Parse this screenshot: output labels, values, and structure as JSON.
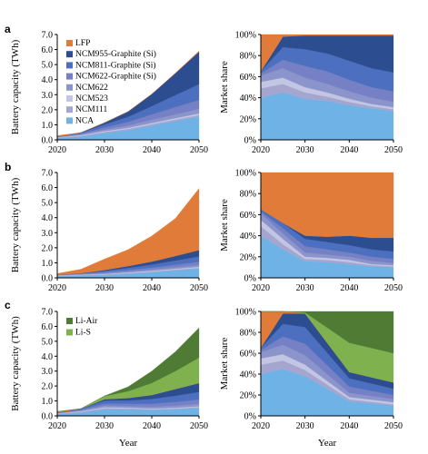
{
  "chart_data": [
    {
      "panel": "a",
      "type": "area",
      "ylabel": "Battery capacity (TWh)",
      "xlabel": "",
      "ylim": [
        0,
        7
      ],
      "xlim": [
        2020,
        2050
      ],
      "x_ticks": [
        "2020",
        "2030",
        "2040",
        "2050"
      ],
      "y_ticks": [
        "0.0",
        "1.0",
        "2.0",
        "3.0",
        "4.0",
        "5.0",
        "6.0",
        "7.0"
      ],
      "grid": false,
      "legend_placement": "top-left",
      "x": [
        2020,
        2025,
        2030,
        2035,
        2040,
        2045,
        2050
      ],
      "series": [
        {
          "name": "NCA",
          "color": "#6fb2e6",
          "values": [
            0.12,
            0.22,
            0.45,
            0.65,
            0.95,
            1.25,
            1.55
          ]
        },
        {
          "name": "NCM111",
          "color": "#a4a6cf",
          "values": [
            0.03,
            0.05,
            0.07,
            0.08,
            0.09,
            0.1,
            0.1
          ]
        },
        {
          "name": "NCM523",
          "color": "#c3c6e2",
          "values": [
            0.02,
            0.04,
            0.06,
            0.07,
            0.08,
            0.09,
            0.1
          ]
        },
        {
          "name": "NCM622",
          "color": "#8b95cc",
          "values": [
            0.02,
            0.05,
            0.1,
            0.15,
            0.21,
            0.25,
            0.3
          ]
        },
        {
          "name": "NCM622-Graphite (Si)",
          "color": "#7581c4",
          "values": [
            0.0,
            0.05,
            0.14,
            0.24,
            0.36,
            0.48,
            0.6
          ]
        },
        {
          "name": "NCM811-Graphite (Si)",
          "color": "#4d6fbf",
          "values": [
            0.0,
            0.07,
            0.2,
            0.34,
            0.55,
            0.8,
            1.05
          ]
        },
        {
          "name": "NCM955-Graphite (Si)",
          "color": "#2c4d8f",
          "values": [
            0.0,
            0.0,
            0.12,
            0.35,
            0.8,
            1.45,
            2.15
          ]
        },
        {
          "name": "LFP",
          "color": "#e07b39",
          "values": [
            0.1,
            0.0,
            0.0,
            0.0,
            0.0,
            0.02,
            0.05
          ]
        }
      ]
    },
    {
      "panel": "a",
      "type": "area",
      "ylabel": "Market share",
      "xlabel": "",
      "ylim": [
        0,
        100
      ],
      "xlim": [
        2020,
        2050
      ],
      "x_ticks": [
        "2020",
        "2030",
        "2040",
        "2050"
      ],
      "y_ticks": [
        "0%",
        "20%",
        "40%",
        "60%",
        "80%",
        "100%"
      ],
      "grid": false,
      "x": [
        2020,
        2025,
        2030,
        2035,
        2040,
        2045,
        2050
      ],
      "series": [
        {
          "name": "NCA",
          "color": "#6fb2e6",
          "values": [
            40,
            45,
            39,
            37,
            33,
            30,
            27
          ]
        },
        {
          "name": "NCM111",
          "color": "#a4a6cf",
          "values": [
            9,
            8,
            6,
            4,
            3,
            2,
            2
          ]
        },
        {
          "name": "NCM523",
          "color": "#c3c6e2",
          "values": [
            6,
            6,
            5,
            4,
            3,
            2,
            2
          ]
        },
        {
          "name": "NCM622",
          "color": "#8b95cc",
          "values": [
            6,
            9,
            9,
            8,
            7,
            6,
            5
          ]
        },
        {
          "name": "NCM622-Graphite (Si)",
          "color": "#7581c4",
          "values": [
            2,
            8,
            11,
            12,
            11,
            10,
            10
          ]
        },
        {
          "name": "NCM811-Graphite (Si)",
          "color": "#4d6fbf",
          "values": [
            2,
            12,
            16,
            17,
            18,
            18,
            18
          ]
        },
        {
          "name": "NCM955-Graphite (Si)",
          "color": "#2c4d8f",
          "values": [
            0,
            10,
            13,
            17,
            24,
            31,
            35
          ]
        },
        {
          "name": "LFP",
          "color": "#e07b39",
          "values": [
            35,
            2,
            1,
            1,
            1,
            1,
            1
          ]
        }
      ]
    },
    {
      "panel": "b",
      "type": "area",
      "ylabel": "Battery capacity (TWh)",
      "xlabel": "",
      "ylim": [
        0,
        7
      ],
      "xlim": [
        2020,
        2050
      ],
      "x_ticks": [
        "2020",
        "2030",
        "2040",
        "2050"
      ],
      "y_ticks": [
        "0.0",
        "1.0",
        "2.0",
        "3.0",
        "4.0",
        "5.0",
        "6.0",
        "7.0"
      ],
      "grid": false,
      "x": [
        2020,
        2025,
        2030,
        2035,
        2040,
        2045,
        2050
      ],
      "series": [
        {
          "name": "NCA",
          "color": "#6fb2e6",
          "values": [
            0.12,
            0.15,
            0.2,
            0.28,
            0.38,
            0.5,
            0.62
          ]
        },
        {
          "name": "NCM111",
          "color": "#a4a6cf",
          "values": [
            0.03,
            0.03,
            0.03,
            0.04,
            0.04,
            0.05,
            0.05
          ]
        },
        {
          "name": "NCM523",
          "color": "#c3c6e2",
          "values": [
            0.02,
            0.03,
            0.03,
            0.04,
            0.05,
            0.05,
            0.06
          ]
        },
        {
          "name": "NCM622",
          "color": "#8b95cc",
          "values": [
            0.02,
            0.03,
            0.05,
            0.06,
            0.08,
            0.1,
            0.12
          ]
        },
        {
          "name": "NCM622-Graphite (Si)",
          "color": "#7581c4",
          "values": [
            0.0,
            0.03,
            0.07,
            0.1,
            0.13,
            0.17,
            0.21
          ]
        },
        {
          "name": "NCM811-Graphite (Si)",
          "color": "#4d6fbf",
          "values": [
            0.0,
            0.03,
            0.09,
            0.14,
            0.2,
            0.28,
            0.36
          ]
        },
        {
          "name": "NCM955-Graphite (Si)",
          "color": "#2c4d8f",
          "values": [
            0.0,
            0.0,
            0.05,
            0.12,
            0.2,
            0.3,
            0.42
          ]
        },
        {
          "name": "LFP",
          "color": "#e07b39",
          "values": [
            0.1,
            0.27,
            0.73,
            1.1,
            1.7,
            2.5,
            4.1
          ]
        }
      ]
    },
    {
      "panel": "b",
      "type": "area",
      "ylabel": "Market share",
      "xlabel": "",
      "ylim": [
        0,
        100
      ],
      "xlim": [
        2020,
        2050
      ],
      "x_ticks": [
        "2020",
        "2030",
        "2040",
        "2050"
      ],
      "y_ticks": [
        "0%",
        "20%",
        "40%",
        "60%",
        "80%",
        "100%"
      ],
      "grid": false,
      "x": [
        2020,
        2025,
        2030,
        2035,
        2040,
        2045,
        2050
      ],
      "series": [
        {
          "name": "NCA",
          "color": "#6fb2e6",
          "values": [
            40,
            27,
            16,
            15,
            13,
            11,
            10
          ]
        },
        {
          "name": "NCM111",
          "color": "#a4a6cf",
          "values": [
            9,
            5,
            2,
            2,
            2,
            1,
            1
          ]
        },
        {
          "name": "NCM523",
          "color": "#c3c6e2",
          "values": [
            6,
            5,
            2,
            2,
            2,
            1,
            1
          ]
        },
        {
          "name": "NCM622",
          "color": "#8b95cc",
          "values": [
            6,
            5,
            4,
            3,
            3,
            3,
            2
          ]
        },
        {
          "name": "NCM622-Graphite (Si)",
          "color": "#7581c4",
          "values": [
            2,
            5,
            6,
            5,
            4,
            4,
            4
          ]
        },
        {
          "name": "NCM811-Graphite (Si)",
          "color": "#4d6fbf",
          "values": [
            2,
            5,
            7,
            7,
            7,
            7,
            7
          ]
        },
        {
          "name": "NCM955-Graphite (Si)",
          "color": "#2c4d8f",
          "values": [
            0,
            0,
            3,
            5,
            9,
            11,
            13
          ]
        },
        {
          "name": "LFP",
          "color": "#e07b39",
          "values": [
            35,
            48,
            60,
            61,
            60,
            62,
            62
          ]
        }
      ]
    },
    {
      "panel": "c",
      "type": "area",
      "ylabel": "Battery capacity (TWh)",
      "xlabel": "Year",
      "ylim": [
        0,
        7
      ],
      "xlim": [
        2020,
        2050
      ],
      "x_ticks": [
        "2020",
        "2030",
        "2040",
        "2050"
      ],
      "y_ticks": [
        "0.0",
        "1.0",
        "2.0",
        "3.0",
        "4.0",
        "5.0",
        "6.0",
        "7.0"
      ],
      "grid": false,
      "legend_placement": "top-left",
      "x": [
        2020,
        2025,
        2030,
        2035,
        2040,
        2045,
        2050
      ],
      "series": [
        {
          "name": "NCA",
          "color": "#6fb2e6",
          "values": [
            0.12,
            0.22,
            0.45,
            0.45,
            0.4,
            0.45,
            0.55
          ]
        },
        {
          "name": "NCM111",
          "color": "#a4a6cf",
          "values": [
            0.03,
            0.05,
            0.07,
            0.05,
            0.04,
            0.04,
            0.04
          ]
        },
        {
          "name": "NCM523",
          "color": "#c3c6e2",
          "values": [
            0.02,
            0.04,
            0.06,
            0.05,
            0.05,
            0.05,
            0.05
          ]
        },
        {
          "name": "NCM622",
          "color": "#8b95cc",
          "values": [
            0.02,
            0.05,
            0.1,
            0.1,
            0.12,
            0.14,
            0.16
          ]
        },
        {
          "name": "NCM622-Graphite (Si)",
          "color": "#7581c4",
          "values": [
            0.0,
            0.05,
            0.14,
            0.16,
            0.2,
            0.25,
            0.3
          ]
        },
        {
          "name": "NCM811-Graphite (Si)",
          "color": "#4d6fbf",
          "values": [
            0.0,
            0.07,
            0.2,
            0.22,
            0.32,
            0.42,
            0.5
          ]
        },
        {
          "name": "NCM955-Graphite (Si)",
          "color": "#2c4d8f",
          "values": [
            0.0,
            0.0,
            0.1,
            0.17,
            0.27,
            0.45,
            0.6
          ]
        },
        {
          "name": "LFP",
          "color": "#e07b39",
          "values": [
            0.1,
            0.0,
            0.0,
            0.0,
            0.0,
            0.0,
            0.0
          ]
        },
        {
          "name": "Li-S",
          "color": "#7fb24f",
          "values": [
            0.0,
            0.0,
            0.2,
            0.45,
            0.8,
            1.2,
            1.7
          ]
        },
        {
          "name": "Li-Air",
          "color": "#4f7b35",
          "values": [
            0.0,
            0.0,
            0.02,
            0.3,
            0.8,
            1.3,
            2.0
          ]
        }
      ]
    },
    {
      "panel": "c",
      "type": "area",
      "ylabel": "Market share",
      "xlabel": "Year",
      "ylim": [
        0,
        100
      ],
      "xlim": [
        2020,
        2050
      ],
      "x_ticks": [
        "2020",
        "2030",
        "2040",
        "2050"
      ],
      "y_ticks": [
        "0%",
        "20%",
        "40%",
        "60%",
        "80%",
        "100%"
      ],
      "grid": false,
      "x": [
        2020,
        2025,
        2030,
        2040,
        2050
      ],
      "series": [
        {
          "name": "NCA",
          "color": "#6fb2e6",
          "values": [
            40,
            45,
            38,
            14,
            10
          ]
        },
        {
          "name": "NCM111",
          "color": "#a4a6cf",
          "values": [
            9,
            8,
            6,
            2,
            1
          ]
        },
        {
          "name": "NCM523",
          "color": "#c3c6e2",
          "values": [
            6,
            6,
            5,
            2,
            2
          ]
        },
        {
          "name": "NCM622",
          "color": "#8b95cc",
          "values": [
            6,
            9,
            9,
            4,
            3
          ]
        },
        {
          "name": "NCM622-Graphite (Si)",
          "color": "#7581c4",
          "values": [
            2,
            8,
            11,
            6,
            4
          ]
        },
        {
          "name": "NCM811-Graphite (Si)",
          "color": "#4d6fbf",
          "values": [
            2,
            12,
            16,
            8,
            6
          ]
        },
        {
          "name": "NCM955-Graphite (Si)",
          "color": "#2c4d8f",
          "values": [
            0,
            10,
            13,
            6,
            6
          ]
        },
        {
          "name": "LFP",
          "color": "#e07b39",
          "values": [
            35,
            2,
            0,
            0,
            0
          ]
        },
        {
          "name": "Li-S",
          "color": "#7fb24f",
          "values": [
            0,
            0,
            1,
            28,
            28
          ]
        },
        {
          "name": "Li-Air",
          "color": "#4f7b35",
          "values": [
            0,
            0,
            1,
            30,
            40
          ]
        }
      ]
    }
  ],
  "panel_labels": [
    "a",
    "b",
    "c"
  ],
  "legend_a": [
    "LFP",
    "NCM955-Graphite (Si)",
    "NCM811-Graphite (Si)",
    "NCM622-Graphite (Si)",
    "NCM622",
    "NCM523",
    "NCM111",
    "NCA"
  ],
  "legend_c": [
    "Li-Air",
    "Li-S"
  ],
  "colors": {
    "NCA": "#6fb2e6",
    "NCM111": "#a4a6cf",
    "NCM523": "#c3c6e2",
    "NCM622": "#8b95cc",
    "NCM622-Graphite (Si)": "#7581c4",
    "NCM811-Graphite (Si)": "#4d6fbf",
    "NCM955-Graphite (Si)": "#2c4d8f",
    "LFP": "#e07b39",
    "Li-S": "#7fb24f",
    "Li-Air": "#4f7b35"
  }
}
